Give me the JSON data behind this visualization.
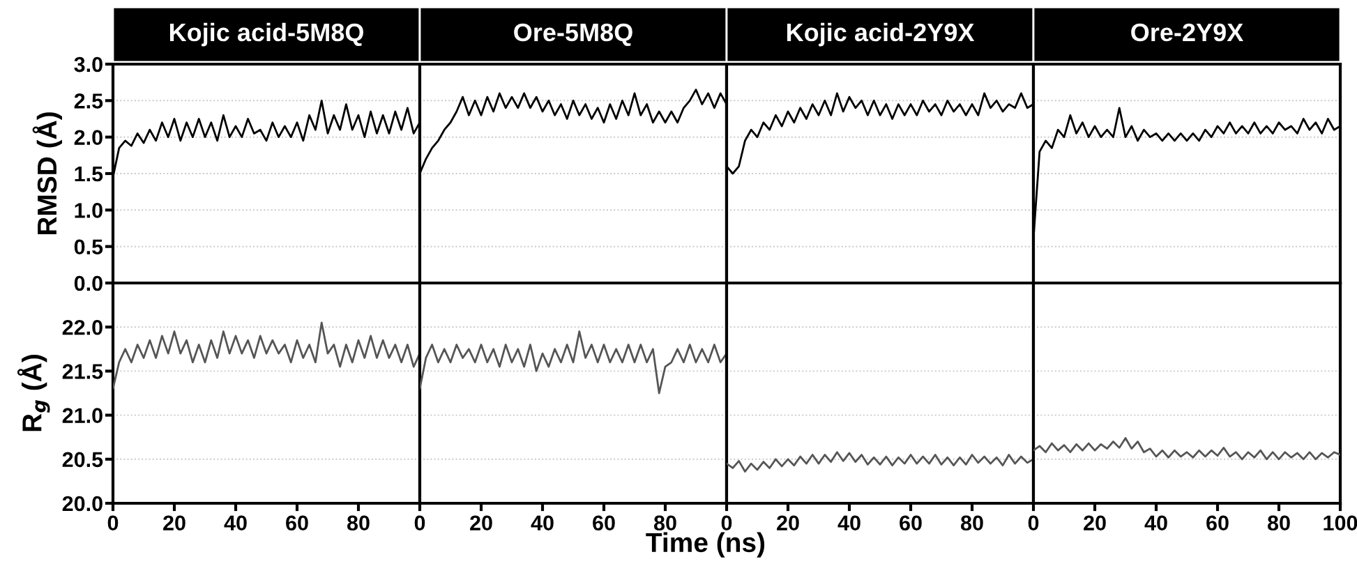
{
  "chart_data": [
    {
      "type": "line",
      "title": "Kojic acid-5M8Q",
      "ylabel": "RMSD (Å)",
      "xlim": [
        0,
        100
      ],
      "ylim": [
        0,
        3
      ],
      "yticks": [
        {
          "value": 0,
          "label": "0.0"
        },
        {
          "value": 0.5,
          "label": "0.5"
        },
        {
          "value": 1,
          "label": "1.0"
        },
        {
          "value": 1.5,
          "label": "1.5"
        },
        {
          "value": 2,
          "label": "2.0"
        },
        {
          "value": 2.5,
          "label": "2.5"
        },
        {
          "value": 3,
          "label": "3.0"
        }
      ],
      "grid": "y",
      "tick_labels": "y",
      "marker": "none",
      "line_style": "solid",
      "x": [
        0,
        2,
        4,
        6,
        8,
        10,
        12,
        14,
        16,
        18,
        20,
        22,
        24,
        26,
        28,
        30,
        32,
        34,
        36,
        38,
        40,
        42,
        44,
        46,
        48,
        50,
        52,
        54,
        56,
        58,
        60,
        62,
        64,
        66,
        68,
        70,
        72,
        74,
        76,
        78,
        80,
        82,
        84,
        86,
        88,
        90,
        92,
        94,
        96,
        98,
        100
      ],
      "series": [
        {
          "color": "#000000",
          "values": [
            1.45,
            1.85,
            1.95,
            1.88,
            2.05,
            1.92,
            2.1,
            1.95,
            2.2,
            2.0,
            2.25,
            1.95,
            2.2,
            2.0,
            2.25,
            2.0,
            2.2,
            1.95,
            2.3,
            2.0,
            2.15,
            2.0,
            2.25,
            2.05,
            2.1,
            1.95,
            2.2,
            2.0,
            2.15,
            2.0,
            2.2,
            1.95,
            2.3,
            2.1,
            2.5,
            2.05,
            2.3,
            2.1,
            2.45,
            2.1,
            2.3,
            2.0,
            2.35,
            2.05,
            2.3,
            2.05,
            2.35,
            2.1,
            2.4,
            2.05,
            2.2
          ]
        }
      ]
    },
    {
      "type": "line",
      "title": "Ore-5M8Q",
      "xlim": [
        0,
        100
      ],
      "ylim": [
        0,
        3
      ],
      "yticks": [
        {
          "value": 0.5,
          "label": null
        },
        {
          "value": 1,
          "label": null
        },
        {
          "value": 1.5,
          "label": null
        },
        {
          "value": 2,
          "label": null
        },
        {
          "value": 2.5,
          "label": null
        }
      ],
      "grid": "y",
      "tick_labels": false,
      "marker": "none",
      "line_style": "solid",
      "x": [
        0,
        2,
        4,
        6,
        8,
        10,
        12,
        14,
        16,
        18,
        20,
        22,
        24,
        26,
        28,
        30,
        32,
        34,
        36,
        38,
        40,
        42,
        44,
        46,
        48,
        50,
        52,
        54,
        56,
        58,
        60,
        62,
        64,
        66,
        68,
        70,
        72,
        74,
        76,
        78,
        80,
        82,
        84,
        86,
        88,
        90,
        92,
        94,
        96,
        98,
        100
      ],
      "series": [
        {
          "color": "#000000",
          "values": [
            1.5,
            1.7,
            1.85,
            1.95,
            2.1,
            2.2,
            2.35,
            2.55,
            2.3,
            2.5,
            2.3,
            2.55,
            2.35,
            2.6,
            2.4,
            2.55,
            2.4,
            2.6,
            2.4,
            2.55,
            2.35,
            2.5,
            2.3,
            2.45,
            2.25,
            2.5,
            2.3,
            2.45,
            2.25,
            2.4,
            2.2,
            2.45,
            2.25,
            2.5,
            2.3,
            2.6,
            2.3,
            2.45,
            2.2,
            2.35,
            2.2,
            2.35,
            2.2,
            2.4,
            2.5,
            2.65,
            2.45,
            2.6,
            2.4,
            2.6,
            2.45
          ]
        }
      ]
    },
    {
      "type": "line",
      "title": "Kojic acid-2Y9X",
      "xlim": [
        0,
        100
      ],
      "ylim": [
        0,
        3
      ],
      "yticks": [
        {
          "value": 0.5,
          "label": null
        },
        {
          "value": 1,
          "label": null
        },
        {
          "value": 1.5,
          "label": null
        },
        {
          "value": 2,
          "label": null
        },
        {
          "value": 2.5,
          "label": null
        }
      ],
      "grid": "y",
      "tick_labels": false,
      "marker": "none",
      "line_style": "solid",
      "x": [
        0,
        2,
        4,
        6,
        8,
        10,
        12,
        14,
        16,
        18,
        20,
        22,
        24,
        26,
        28,
        30,
        32,
        34,
        36,
        38,
        40,
        42,
        44,
        46,
        48,
        50,
        52,
        54,
        56,
        58,
        60,
        62,
        64,
        66,
        68,
        70,
        72,
        74,
        76,
        78,
        80,
        82,
        84,
        86,
        88,
        90,
        92,
        94,
        96,
        98,
        100
      ],
      "series": [
        {
          "color": "#000000",
          "values": [
            1.6,
            1.5,
            1.6,
            1.95,
            2.1,
            2.0,
            2.2,
            2.1,
            2.3,
            2.15,
            2.35,
            2.2,
            2.4,
            2.25,
            2.45,
            2.3,
            2.5,
            2.3,
            2.6,
            2.35,
            2.55,
            2.4,
            2.5,
            2.3,
            2.5,
            2.3,
            2.45,
            2.25,
            2.45,
            2.3,
            2.45,
            2.3,
            2.5,
            2.35,
            2.45,
            2.3,
            2.5,
            2.35,
            2.45,
            2.3,
            2.45,
            2.3,
            2.6,
            2.4,
            2.5,
            2.35,
            2.45,
            2.4,
            2.6,
            2.4,
            2.45
          ]
        }
      ]
    },
    {
      "type": "line",
      "title": "Ore-2Y9X",
      "xlim": [
        0,
        100
      ],
      "ylim": [
        0,
        3
      ],
      "yticks": [
        {
          "value": 0.5,
          "label": null
        },
        {
          "value": 1,
          "label": null
        },
        {
          "value": 1.5,
          "label": null
        },
        {
          "value": 2,
          "label": null
        },
        {
          "value": 2.5,
          "label": null
        }
      ],
      "grid": "y",
      "tick_labels": false,
      "marker": "none",
      "line_style": "solid",
      "x": [
        0,
        2,
        4,
        6,
        8,
        10,
        12,
        14,
        16,
        18,
        20,
        22,
        24,
        26,
        28,
        30,
        32,
        34,
        36,
        38,
        40,
        42,
        44,
        46,
        48,
        50,
        52,
        54,
        56,
        58,
        60,
        62,
        64,
        66,
        68,
        70,
        72,
        74,
        76,
        78,
        80,
        82,
        84,
        86,
        88,
        90,
        92,
        94,
        96,
        98,
        100
      ],
      "series": [
        {
          "color": "#000000",
          "values": [
            0.6,
            1.8,
            1.95,
            1.85,
            2.1,
            2.0,
            2.3,
            2.05,
            2.2,
            2.0,
            2.15,
            2.0,
            2.1,
            2.0,
            2.4,
            2.0,
            2.15,
            1.95,
            2.1,
            2.0,
            2.05,
            1.95,
            2.05,
            1.95,
            2.05,
            1.95,
            2.05,
            1.95,
            2.1,
            2.0,
            2.15,
            2.05,
            2.2,
            2.05,
            2.15,
            2.05,
            2.2,
            2.05,
            2.15,
            2.05,
            2.2,
            2.1,
            2.15,
            2.05,
            2.25,
            2.1,
            2.2,
            2.05,
            2.25,
            2.1,
            2.15
          ]
        }
      ]
    },
    {
      "type": "line",
      "ylabel": "R$_{g}$ (Å)",
      "xlim": [
        0,
        100
      ],
      "xticks": [
        0,
        20,
        40,
        60,
        80
      ],
      "ylim": [
        20,
        22.5
      ],
      "yticks": [
        {
          "value": 20,
          "label": "20.0"
        },
        {
          "value": 20.5,
          "label": "20.5"
        },
        {
          "value": 21,
          "label": "21.0"
        },
        {
          "value": 21.5,
          "label": "21.5"
        },
        {
          "value": 22,
          "label": "22.0"
        }
      ],
      "grid": "y",
      "marker": "none",
      "line_style": "solid",
      "x": [
        0,
        2,
        4,
        6,
        8,
        10,
        12,
        14,
        16,
        18,
        20,
        22,
        24,
        26,
        28,
        30,
        32,
        34,
        36,
        38,
        40,
        42,
        44,
        46,
        48,
        50,
        52,
        54,
        56,
        58,
        60,
        62,
        64,
        66,
        68,
        70,
        72,
        74,
        76,
        78,
        80,
        82,
        84,
        86,
        88,
        90,
        92,
        94,
        96,
        98,
        100
      ],
      "series": [
        {
          "color": "#555555",
          "values": [
            21.3,
            21.6,
            21.75,
            21.6,
            21.8,
            21.65,
            21.85,
            21.65,
            21.9,
            21.7,
            21.95,
            21.7,
            21.85,
            21.6,
            21.8,
            21.6,
            21.85,
            21.65,
            21.95,
            21.7,
            21.9,
            21.7,
            21.85,
            21.65,
            21.9,
            21.7,
            21.85,
            21.7,
            21.8,
            21.6,
            21.85,
            21.65,
            21.8,
            21.6,
            22.05,
            21.7,
            21.8,
            21.55,
            21.8,
            21.6,
            21.85,
            21.65,
            21.9,
            21.65,
            21.85,
            21.65,
            21.8,
            21.6,
            21.8,
            21.55,
            21.7
          ]
        }
      ]
    },
    {
      "type": "line",
      "xlabel": "Time (ns)",
      "xlim": [
        0,
        100
      ],
      "xticks": [
        0,
        20,
        40,
        60,
        80
      ],
      "ylim": [
        20,
        22.5
      ],
      "yticks": [
        {
          "value": 20.5,
          "label": null
        },
        {
          "value": 21,
          "label": null
        },
        {
          "value": 21.5,
          "label": null
        },
        {
          "value": 22,
          "label": null
        }
      ],
      "grid": "y",
      "tick_labels": "x",
      "marker": "none",
      "line_style": "solid",
      "x": [
        0,
        2,
        4,
        6,
        8,
        10,
        12,
        14,
        16,
        18,
        20,
        22,
        24,
        26,
        28,
        30,
        32,
        34,
        36,
        38,
        40,
        42,
        44,
        46,
        48,
        50,
        52,
        54,
        56,
        58,
        60,
        62,
        64,
        66,
        68,
        70,
        72,
        74,
        76,
        78,
        80,
        82,
        84,
        86,
        88,
        90,
        92,
        94,
        96,
        98,
        100
      ],
      "series": [
        {
          "color": "#555555",
          "values": [
            21.3,
            21.65,
            21.8,
            21.6,
            21.75,
            21.6,
            21.8,
            21.65,
            21.75,
            21.6,
            21.8,
            21.6,
            21.75,
            21.55,
            21.8,
            21.6,
            21.75,
            21.55,
            21.8,
            21.5,
            21.7,
            21.55,
            21.75,
            21.6,
            21.8,
            21.6,
            21.95,
            21.65,
            21.8,
            21.6,
            21.8,
            21.6,
            21.75,
            21.6,
            21.8,
            21.6,
            21.8,
            21.6,
            21.75,
            21.25,
            21.55,
            21.6,
            21.75,
            21.6,
            21.8,
            21.6,
            21.75,
            21.6,
            21.8,
            21.6,
            21.7
          ]
        }
      ]
    },
    {
      "type": "line",
      "xlim": [
        0,
        100
      ],
      "xticks": [
        0,
        20,
        40,
        60,
        80
      ],
      "ylim": [
        20,
        22.5
      ],
      "yticks": [
        {
          "value": 20.5,
          "label": null
        },
        {
          "value": 21,
          "label": null
        },
        {
          "value": 21.5,
          "label": null
        },
        {
          "value": 22,
          "label": null
        }
      ],
      "grid": "y",
      "tick_labels": "x",
      "marker": "none",
      "line_style": "solid",
      "x": [
        0,
        2,
        4,
        6,
        8,
        10,
        12,
        14,
        16,
        18,
        20,
        22,
        24,
        26,
        28,
        30,
        32,
        34,
        36,
        38,
        40,
        42,
        44,
        46,
        48,
        50,
        52,
        54,
        56,
        58,
        60,
        62,
        64,
        66,
        68,
        70,
        72,
        74,
        76,
        78,
        80,
        82,
        84,
        86,
        88,
        90,
        92,
        94,
        96,
        98,
        100
      ],
      "series": [
        {
          "color": "#555555",
          "values": [
            20.45,
            20.4,
            20.48,
            20.36,
            20.45,
            20.38,
            20.47,
            20.4,
            20.5,
            20.42,
            20.5,
            20.43,
            20.53,
            20.45,
            20.55,
            20.45,
            20.55,
            20.47,
            20.58,
            20.48,
            20.57,
            20.47,
            20.55,
            20.44,
            20.52,
            20.44,
            20.53,
            20.43,
            20.52,
            20.45,
            20.55,
            20.45,
            20.53,
            20.45,
            20.55,
            20.44,
            20.52,
            20.43,
            20.52,
            20.44,
            20.55,
            20.46,
            20.53,
            20.45,
            20.52,
            20.43,
            20.55,
            20.45,
            20.53,
            20.46,
            20.5
          ]
        }
      ]
    },
    {
      "type": "line",
      "xlim": [
        0,
        100
      ],
      "xticks": [
        0,
        20,
        40,
        60,
        80,
        100
      ],
      "ylim": [
        20,
        22.5
      ],
      "yticks": [
        {
          "value": 20.5,
          "label": null
        },
        {
          "value": 21,
          "label": null
        },
        {
          "value": 21.5,
          "label": null
        },
        {
          "value": 22,
          "label": null
        }
      ],
      "grid": "y",
      "tick_labels": "x",
      "marker": "none",
      "line_style": "solid",
      "x": [
        0,
        2,
        4,
        6,
        8,
        10,
        12,
        14,
        16,
        18,
        20,
        22,
        24,
        26,
        28,
        30,
        32,
        34,
        36,
        38,
        40,
        42,
        44,
        46,
        48,
        50,
        52,
        54,
        56,
        58,
        60,
        62,
        64,
        66,
        68,
        70,
        72,
        74,
        76,
        78,
        80,
        82,
        84,
        86,
        88,
        90,
        92,
        94,
        96,
        98,
        100
      ],
      "series": [
        {
          "color": "#555555",
          "values": [
            20.6,
            20.65,
            20.58,
            20.68,
            20.6,
            20.66,
            20.58,
            20.67,
            20.6,
            20.68,
            20.6,
            20.67,
            20.62,
            20.7,
            20.63,
            20.74,
            20.62,
            20.7,
            20.58,
            20.62,
            20.53,
            20.6,
            20.52,
            20.6,
            20.53,
            20.58,
            20.52,
            20.6,
            20.53,
            20.6,
            20.54,
            20.63,
            20.53,
            20.58,
            20.5,
            20.58,
            20.52,
            20.6,
            20.5,
            20.58,
            20.5,
            20.58,
            20.52,
            20.57,
            20.5,
            20.58,
            20.5,
            20.57,
            20.52,
            20.58,
            20.55
          ]
        }
      ]
    }
  ]
}
